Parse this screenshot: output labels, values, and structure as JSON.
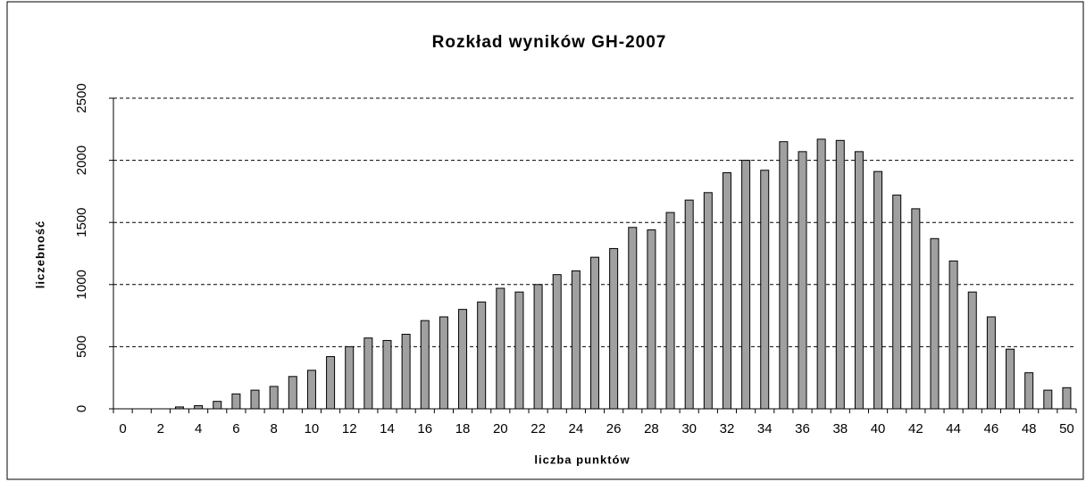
{
  "chart_data": {
    "type": "bar",
    "title": "Rozkład wyników  GH-2007",
    "x_label": "liczba punktów",
    "y_label": "liczebność",
    "categories": [
      0,
      null,
      2,
      null,
      4,
      null,
      6,
      null,
      8,
      null,
      10,
      null,
      12,
      null,
      14,
      null,
      16,
      null,
      18,
      null,
      20,
      null,
      22,
      null,
      24,
      null,
      26,
      null,
      28,
      null,
      30,
      null,
      32,
      null,
      34,
      null,
      36,
      null,
      38,
      null,
      40,
      null,
      42,
      null,
      44,
      null,
      46,
      null,
      48,
      null,
      50
    ],
    "values": [
      0,
      0,
      0,
      15,
      25,
      60,
      120,
      150,
      180,
      260,
      310,
      420,
      500,
      570,
      550,
      600,
      710,
      740,
      800,
      860,
      970,
      940,
      1000,
      1080,
      1110,
      1220,
      1290,
      1460,
      1440,
      1580,
      1680,
      1740,
      1900,
      2000,
      1920,
      2150,
      2070,
      2170,
      2160,
      2070,
      1910,
      1720,
      1610,
      1370,
      1190,
      940,
      740,
      480,
      290,
      150,
      170
    ],
    "color": "#a0a0a0",
    "ylim": [
      0,
      2500
    ],
    "yticks": [
      0,
      500,
      1000,
      1500,
      2000,
      2500
    ],
    "grid": true
  }
}
